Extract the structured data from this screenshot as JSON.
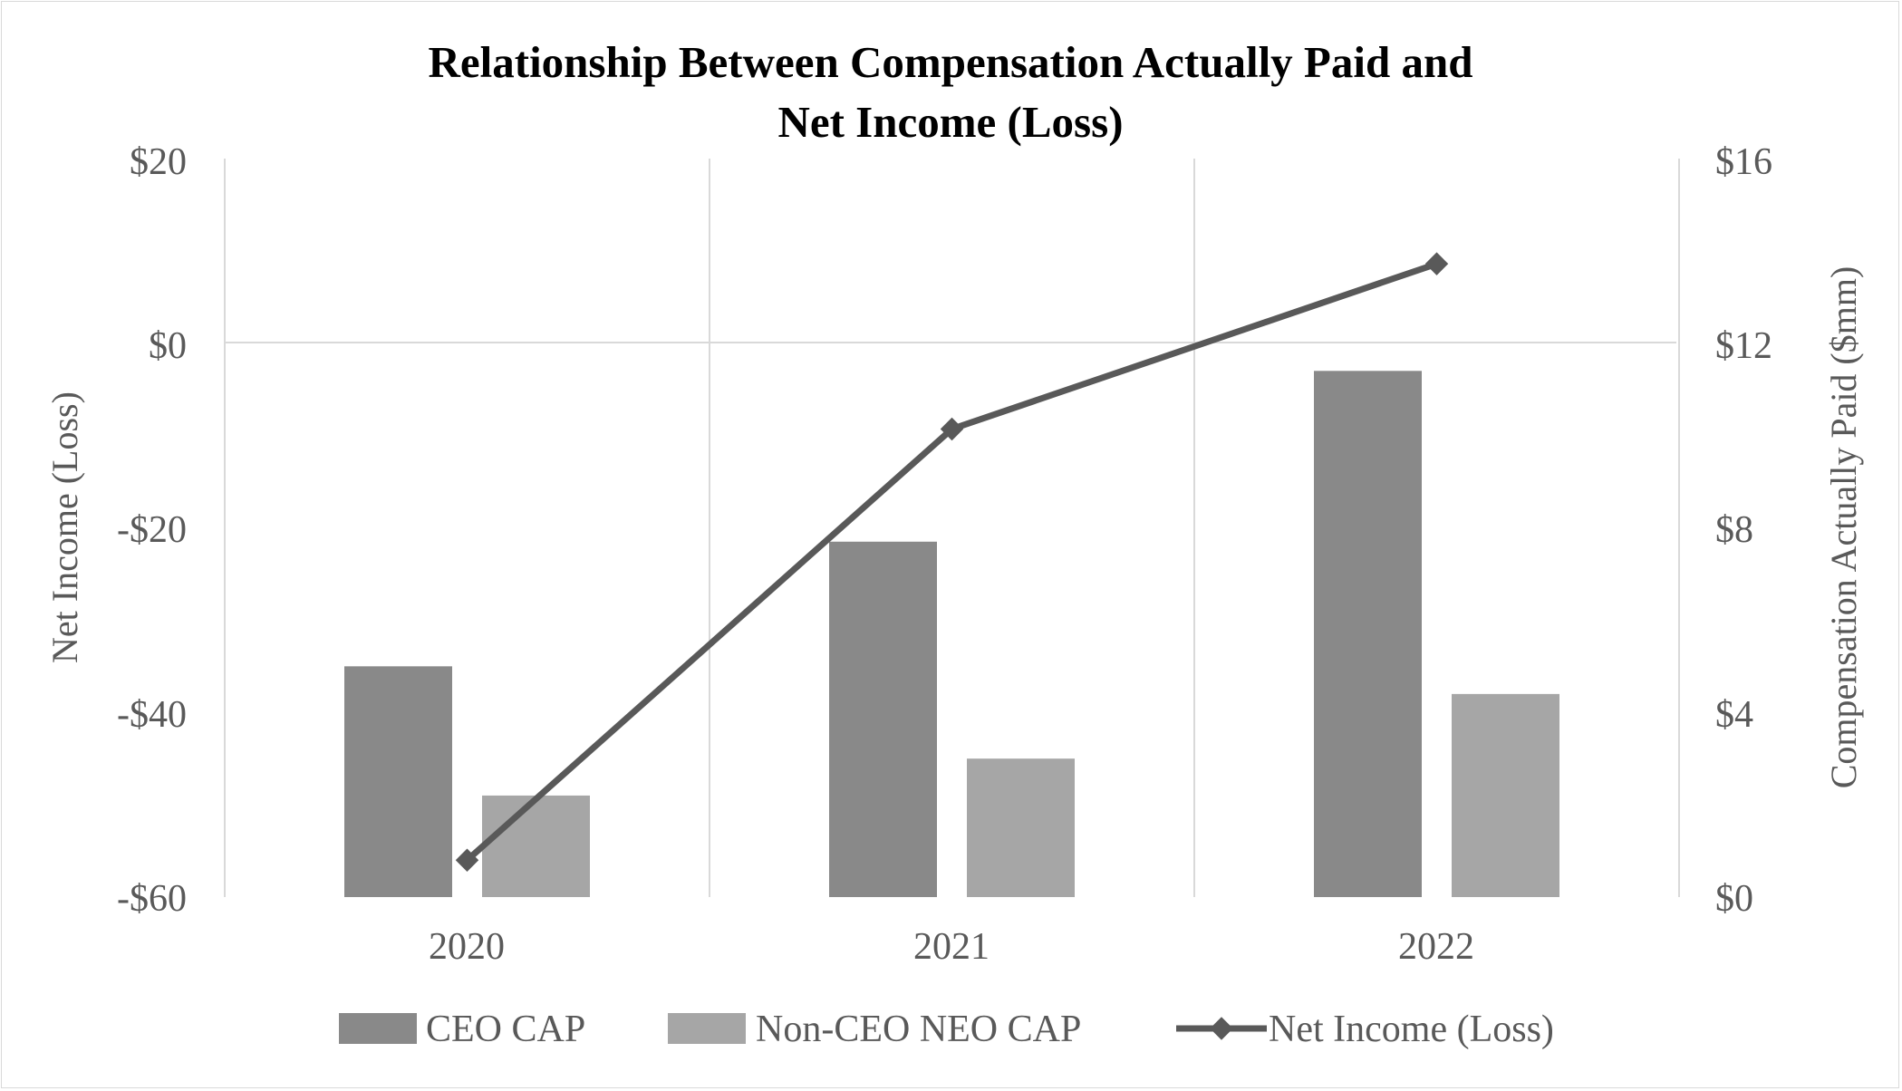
{
  "chart_data": {
    "type": "bar+line",
    "title_lines": [
      "Relationship Between Compensation Actually Paid and",
      "Net Income (Loss)"
    ],
    "categories": [
      "2020",
      "2021",
      "2022"
    ],
    "left_axis": {
      "label": "Net Income (Loss)",
      "range": [
        -60,
        20
      ],
      "ticks": [
        20,
        0,
        -20,
        -40,
        -60
      ],
      "tick_labels": [
        "$20",
        "$0",
        "-$20",
        "-$40",
        "-$60"
      ]
    },
    "right_axis": {
      "label": "Compensation Actually Paid ($mm)",
      "range": [
        0,
        16
      ],
      "ticks": [
        16,
        12,
        8,
        4,
        0
      ],
      "tick_labels": [
        "$16",
        "$12",
        "$8",
        "$4",
        "$0"
      ]
    },
    "series": [
      {
        "name": "CEO CAP",
        "type": "bar",
        "axis": "right",
        "color": "#898989",
        "values": [
          5.0,
          7.7,
          11.4
        ]
      },
      {
        "name": "Non-CEO NEO CAP",
        "type": "bar",
        "axis": "right",
        "color": "#a6a6a6",
        "values": [
          2.2,
          3.0,
          4.4
        ]
      },
      {
        "name": "Net Income (Loss)",
        "type": "line",
        "axis": "left",
        "color": "#595959",
        "values": [
          -56.0,
          -9.3,
          8.6
        ]
      }
    ],
    "grid": true,
    "legend_position": "bottom"
  }
}
